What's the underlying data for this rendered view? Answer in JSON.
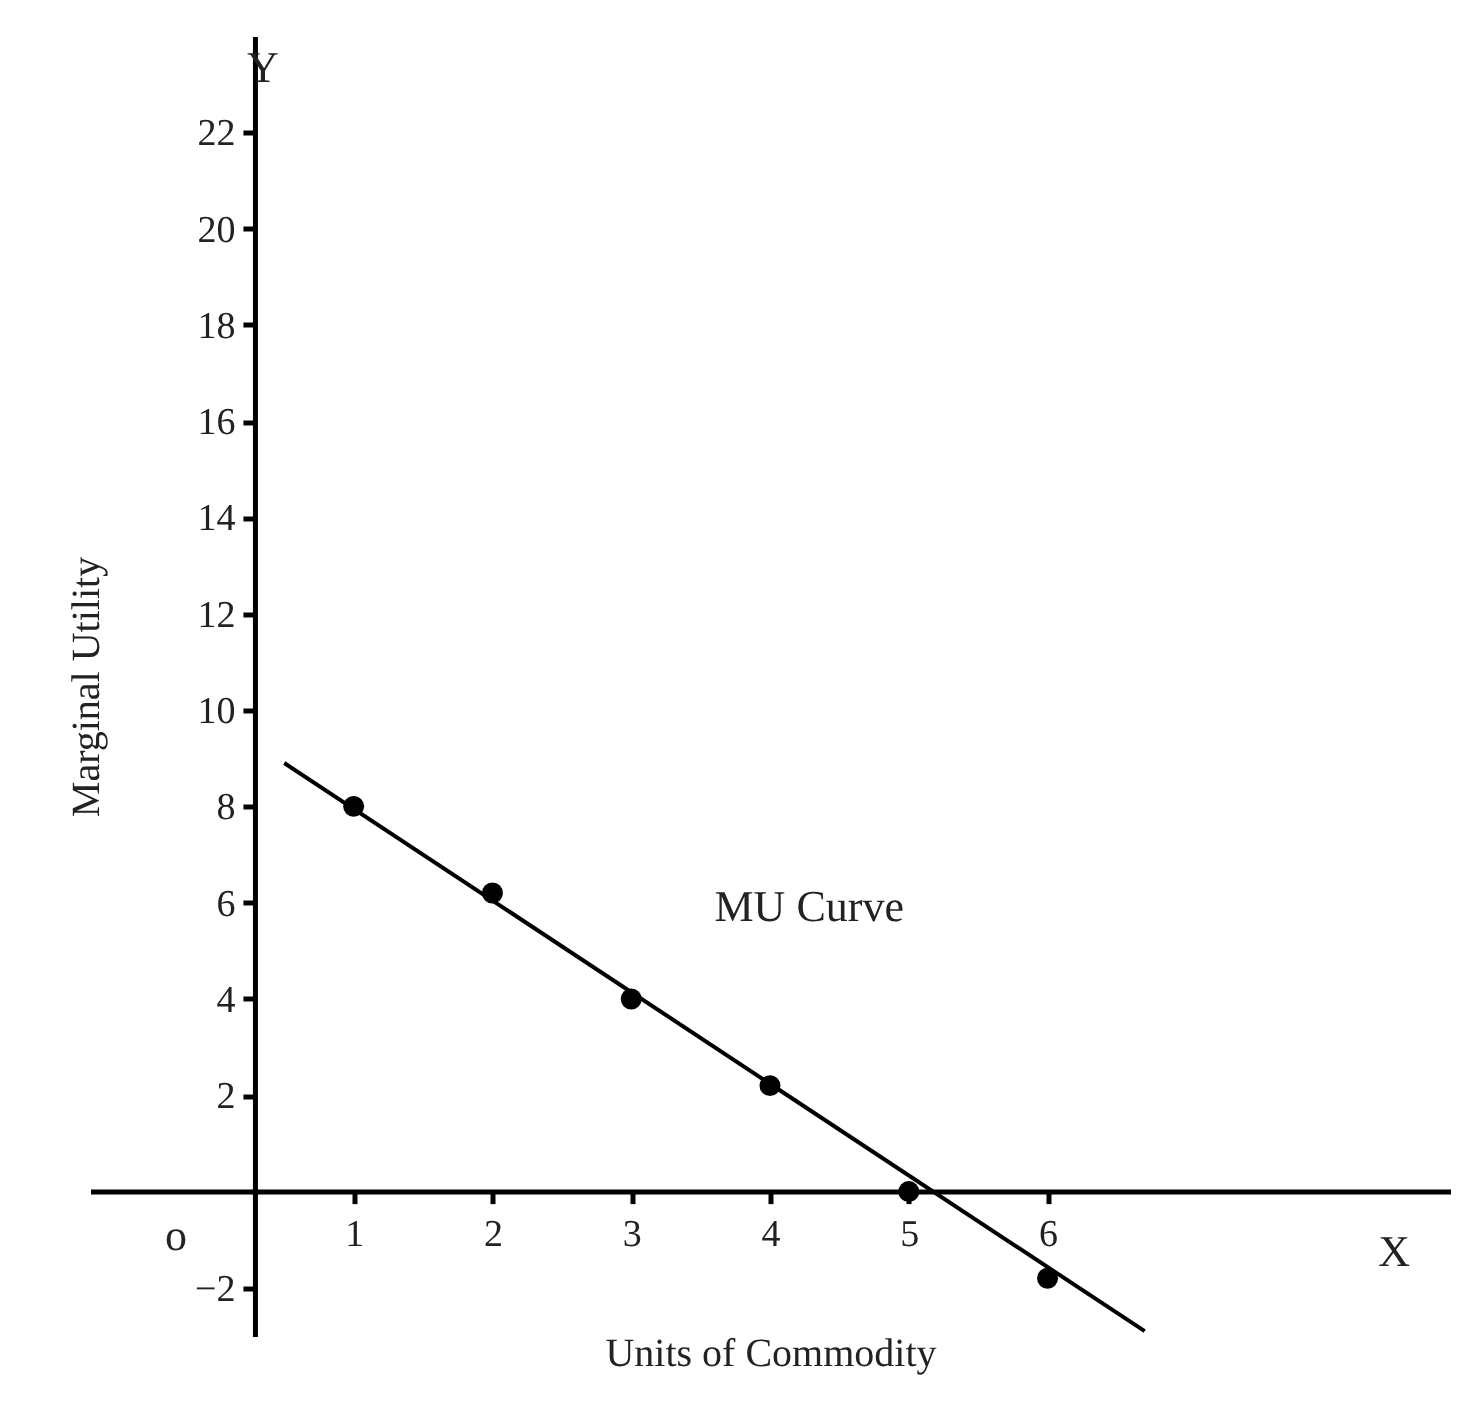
{
  "chart_data": {
    "type": "scatter",
    "xlabel": "Units of Commodity",
    "ylabel": "Marginal Utility",
    "x": [
      1,
      2,
      3,
      4,
      5,
      6
    ],
    "series": [
      {
        "color": "#000000",
        "values": [
          8,
          6.2,
          4,
          2.2,
          0,
          -1.8
        ]
      },
      {
        "type": "line",
        "name": "MU Curve",
        "color": "#000000",
        "marker": "none",
        "x": [
          0.5,
          6.7
        ],
        "values": [
          8.9,
          -2.9
        ]
      }
    ],
    "xlim": [
      -0.9,
      8.9
    ],
    "ylim": [
      -3.0,
      24
    ],
    "xticks": [
      1,
      2,
      3,
      4,
      5,
      6
    ],
    "yticks": [
      -2,
      2,
      4,
      6,
      8,
      10,
      12,
      14,
      16,
      18,
      20,
      22
    ],
    "annotations": [
      "o",
      "X",
      "Y"
    ],
    "grid": false,
    "marker": "circle",
    "line_style": "solid"
  }
}
